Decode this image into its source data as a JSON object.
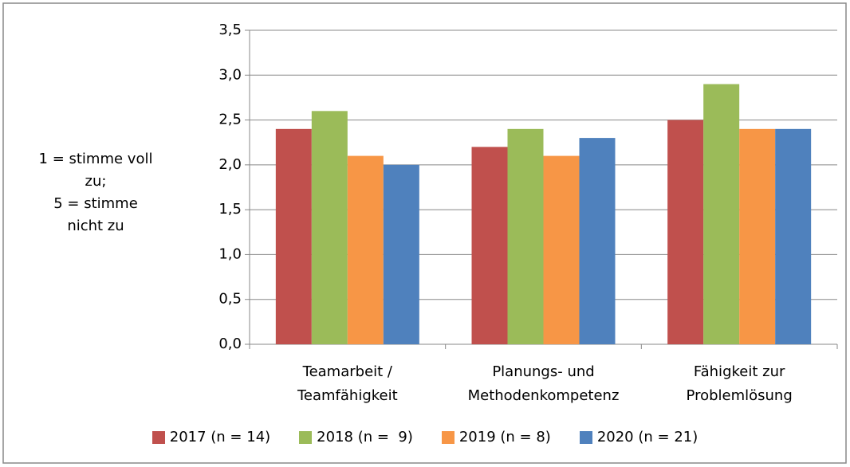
{
  "chart_data": {
    "type": "bar",
    "y_label_lines": [
      "1 = stimme voll",
      "zu;",
      "5 = stimme",
      "nicht zu"
    ],
    "categories": [
      "Teamarbeit / Teamfähigkeit",
      "Planungs- und Methodenkompetenz",
      "Fähigkeit zur Problemlösung"
    ],
    "series": [
      {
        "name": "2017 (n = 14)",
        "color": "#c0504d",
        "values": [
          2.4,
          2.2,
          2.5
        ]
      },
      {
        "name": "2018 (n =  9)",
        "color": "#9bbb59",
        "values": [
          2.6,
          2.4,
          2.9
        ]
      },
      {
        "name": "2019 (n = 8)",
        "color": "#f79646",
        "values": [
          2.1,
          2.1,
          2.4
        ]
      },
      {
        "name": "2020 (n = 21)",
        "color": "#4f81bd",
        "values": [
          2.0,
          2.3,
          2.4
        ]
      }
    ],
    "ylim": [
      0,
      3.5
    ],
    "yticks": [
      {
        "value": 0,
        "label": "0,0"
      },
      {
        "value": 0.5,
        "label": "0,5"
      },
      {
        "value": 1,
        "label": "1,0"
      },
      {
        "value": 1.5,
        "label": "1,5"
      },
      {
        "value": 2,
        "label": "2,0"
      },
      {
        "value": 2.5,
        "label": "2,5"
      },
      {
        "value": 3,
        "label": "3,0"
      },
      {
        "value": 3.5,
        "label": "3,5"
      }
    ],
    "grid": true,
    "legend": "bottom"
  }
}
